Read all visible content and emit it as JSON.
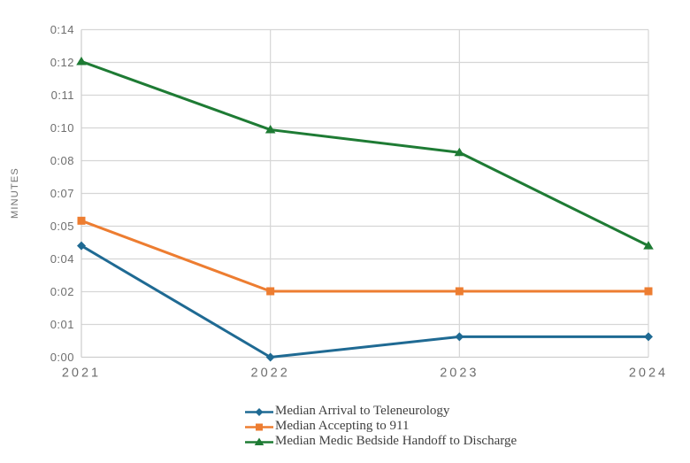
{
  "chart_data": {
    "type": "line",
    "title": "",
    "ylabel": "MINUTES",
    "xlabel": "",
    "x_categories": [
      "2021",
      "2022",
      "2023",
      "2024"
    ],
    "y_tick_labels": [
      "0:00",
      "0:01",
      "0:02",
      "0:04",
      "0:05",
      "0:07",
      "0:08",
      "0:10",
      "0:11",
      "0:12",
      "0:14"
    ],
    "ylim_minutes": [
      0,
      14.4
    ],
    "y_major_unit_minutes": 1.44,
    "grid": true,
    "legend_position": "bottom-left",
    "series": [
      {
        "name": "Median Arrival to Teleneurology",
        "marker": "diamond",
        "color": "#1F6A93",
        "values_minutes": [
          4.9,
          0,
          0.9,
          0.9
        ]
      },
      {
        "name": "Median Accepting to 911",
        "marker": "square",
        "color": "#ED7D31",
        "values_minutes": [
          6.0,
          2.9,
          2.9,
          2.9
        ]
      },
      {
        "name": "Median Medic Bedside Handoff to Discharge",
        "marker": "triangle",
        "color": "#1E7B34",
        "values_minutes": [
          13.0,
          10.0,
          9.0,
          4.9
        ]
      }
    ]
  },
  "colors": {
    "background": "#FFFFFF",
    "gridline": "#D6D6D6",
    "axis_line": "#CDCDCD",
    "axis_text": "#6E6E6E",
    "legend_text": "#3F3F3F"
  }
}
